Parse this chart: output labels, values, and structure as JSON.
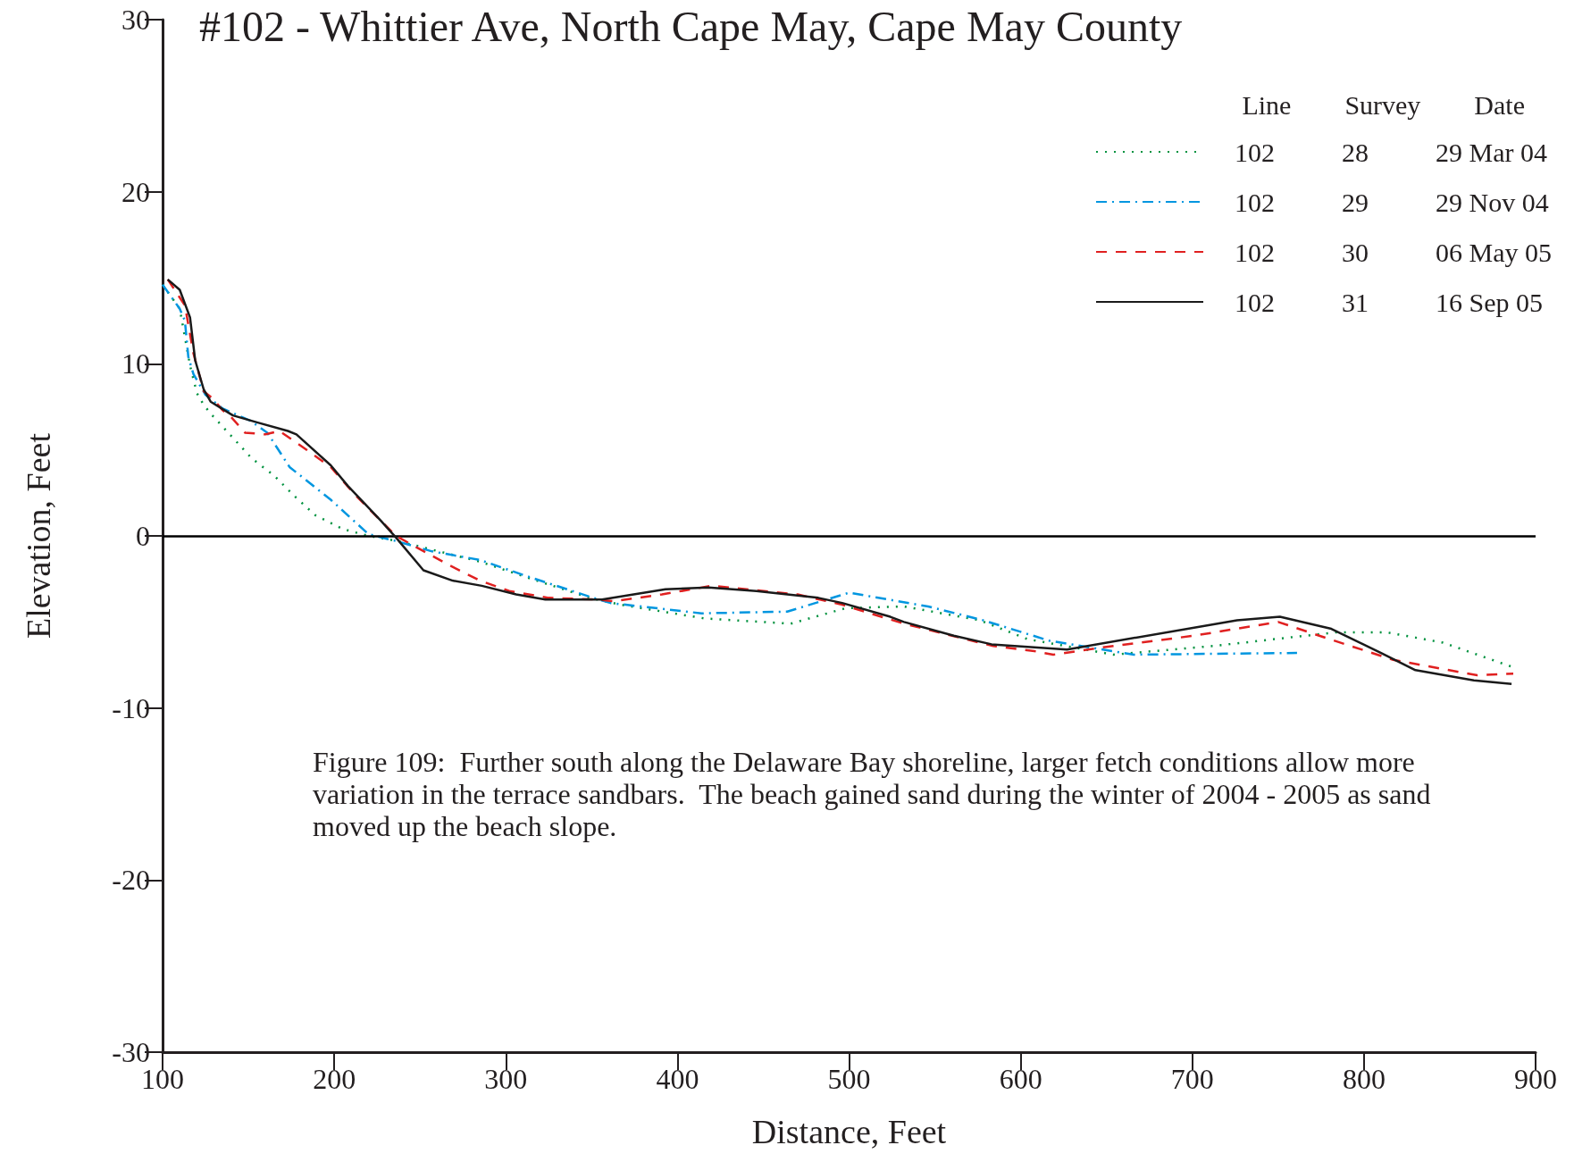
{
  "chart_data": {
    "type": "line",
    "title": "#102 - Whittier Ave, North Cape May, Cape May County",
    "xlabel": "Distance, Feet",
    "ylabel": "Elevation, Feet",
    "legend_title": "Line        Survey        Date",
    "legend": "top right",
    "grid": false,
    "marker": "none",
    "xlim": [
      100,
      900
    ],
    "xticks": [
      100,
      200,
      300,
      400,
      500,
      600,
      700,
      800,
      900
    ],
    "ylim": [
      -30,
      30
    ],
    "yticks": [
      -30,
      -20,
      -10,
      0,
      10,
      20,
      30
    ],
    "ref_lines": [
      {
        "axis": "y",
        "value": 0,
        "color": "#000000",
        "line_style": "solid"
      }
    ],
    "annotations": [
      "Figure 109:  Further south along the Delaware Bay shoreline, larger fetch conditions allow more variation in the terrace sandbars.  The beach gained sand during the winter of 2004 - 2005 as sand moved up the beach slope."
    ],
    "series": [
      {
        "name": "102          28          29 Mar 04",
        "color": "#00923f",
        "line_style": "dotted",
        "x": [
          100,
          110,
          116,
          120,
          124,
          129,
          141,
          152,
          165,
          177,
          189,
          205,
          220,
          237,
          269,
          285,
          318,
          349,
          367,
          416,
          466,
          498,
          532,
          576,
          604,
          654,
          712,
          784,
          813,
          846,
          886
        ],
        "values": [
          14.6,
          13.2,
          9.9,
          8.3,
          7.6,
          7.0,
          5.7,
          4.5,
          3.5,
          2.3,
          1.2,
          0.4,
          0,
          -0.3,
          -1.1,
          -1.5,
          -2.6,
          -3.6,
          -4.0,
          -4.8,
          -5.1,
          -4.2,
          -4.1,
          -4.9,
          -6.0,
          -6.9,
          -6.4,
          -5.6,
          -5.6,
          -6.2,
          -7.6
        ]
      },
      {
        "name": "102          29          29 Nov 04",
        "color": "#0096e0",
        "line_style": "dashdot",
        "x": [
          100,
          110,
          113,
          115,
          118,
          125,
          135,
          151,
          161,
          174,
          198,
          220,
          236,
          257,
          285,
          311,
          351,
          361,
          414,
          464,
          500,
          546,
          578,
          604,
          617,
          666,
          761
        ],
        "values": [
          14.6,
          13.2,
          12.5,
          10.4,
          9.4,
          8.2,
          7.4,
          6.7,
          6.0,
          4.0,
          2.1,
          0.1,
          -0.3,
          -0.9,
          -1.4,
          -2.3,
          -3.6,
          -3.9,
          -4.5,
          -4.4,
          -3.3,
          -4.1,
          -4.9,
          -5.7,
          -6.1,
          -6.9,
          -6.8
        ]
      },
      {
        "name": "102          30          06 May 05",
        "color": "#e02020",
        "line_style": "dashed",
        "x": [
          103,
          113,
          118,
          124,
          129,
          135,
          140,
          148,
          160,
          168,
          184,
          198,
          212,
          229,
          236,
          245,
          267,
          285,
          302,
          325,
          354,
          363,
          391,
          420,
          470,
          496,
          532,
          584,
          608,
          619,
          646,
          701,
          750,
          780,
          817,
          866,
          887
        ],
        "values": [
          14.9,
          13.4,
          10.6,
          8.4,
          8.0,
          7.3,
          6.9,
          6.0,
          5.9,
          6.1,
          5.0,
          4.0,
          2.4,
          0.7,
          0,
          -0.5,
          -1.7,
          -2.6,
          -3.2,
          -3.6,
          -3.7,
          -3.8,
          -3.4,
          -2.9,
          -3.4,
          -4.0,
          -5.1,
          -6.4,
          -6.7,
          -6.9,
          -6.5,
          -5.8,
          -5.0,
          -6.0,
          -7.2,
          -8.1,
          -8.0
        ]
      },
      {
        "name": "102          31          16 Sep 05",
        "color": "#1a1a1a",
        "line_style": "solid",
        "x": [
          103,
          110,
          116,
          119,
          124,
          128,
          141,
          155,
          173,
          178,
          198,
          208,
          227,
          236,
          252,
          269,
          286,
          306,
          323,
          356,
          393,
          418,
          446,
          482,
          496,
          524,
          532,
          561,
          583,
          627,
          726,
          751,
          781,
          810,
          830,
          864,
          886
        ],
        "values": [
          14.9,
          14.3,
          12.7,
          10.2,
          8.5,
          7.8,
          7.0,
          6.6,
          6.1,
          5.9,
          4.1,
          2.9,
          0.9,
          -0.1,
          -2.0,
          -2.6,
          -2.9,
          -3.4,
          -3.7,
          -3.7,
          -3.1,
          -3.0,
          -3.2,
          -3.6,
          -3.9,
          -4.7,
          -5.0,
          -5.8,
          -6.3,
          -6.6,
          -4.9,
          -4.7,
          -5.4,
          -6.8,
          -7.8,
          -8.4,
          -8.6
        ]
      }
    ]
  }
}
